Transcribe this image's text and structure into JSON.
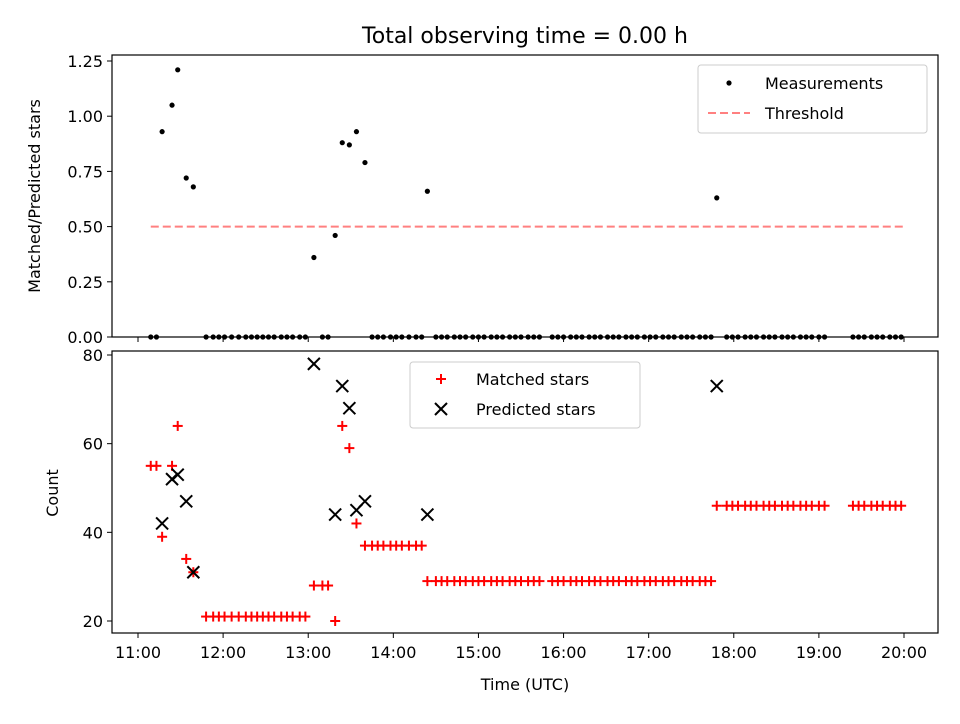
{
  "title": "Total observing time = 0.00 h",
  "colors": {
    "measurement": "#000000",
    "threshold": "#ff8080",
    "matched": "#ff0000",
    "predicted": "#000000"
  },
  "chart_data": [
    {
      "type": "scatter",
      "ylabel": "Matched/Predicted stars",
      "xlabel": "",
      "xlim": [
        "11:00",
        "20:00"
      ],
      "ylim": [
        0,
        1.25
      ],
      "yticks": [
        "0.00",
        "0.25",
        "0.50",
        "0.75",
        "1.00",
        "1.25"
      ],
      "legend_position": "top-right",
      "legend": [
        "Measurements",
        "Threshold"
      ],
      "threshold": {
        "name": "Threshold",
        "y": 0.5,
        "x_start": "11:09",
        "x_end": "20:00"
      },
      "series": [
        {
          "name": "Measurements",
          "points": [
            [
              "11:09",
              0
            ],
            [
              "11:13",
              0
            ],
            [
              "11:17",
              0.93
            ],
            [
              "11:24",
              1.05
            ],
            [
              "11:28",
              1.21
            ],
            [
              "11:34",
              0.72
            ],
            [
              "11:39",
              0.68
            ],
            [
              "11:48",
              0
            ],
            [
              "11:53",
              0
            ],
            [
              "11:57",
              0
            ],
            [
              "12:01",
              0
            ],
            [
              "12:06",
              0
            ],
            [
              "12:11",
              0
            ],
            [
              "12:16",
              0
            ],
            [
              "12:20",
              0
            ],
            [
              "12:24",
              0
            ],
            [
              "12:28",
              0
            ],
            [
              "12:32",
              0
            ],
            [
              "12:36",
              0
            ],
            [
              "12:41",
              0
            ],
            [
              "12:45",
              0
            ],
            [
              "12:49",
              0
            ],
            [
              "12:54",
              0
            ],
            [
              "12:58",
              0
            ],
            [
              "13:04",
              0.36
            ],
            [
              "13:10",
              0
            ],
            [
              "13:14",
              0
            ],
            [
              "13:19",
              0.46
            ],
            [
              "13:24",
              0.88
            ],
            [
              "13:29",
              0.87
            ],
            [
              "13:34",
              0.93
            ],
            [
              "13:40",
              0.79
            ],
            [
              "13:45",
              0
            ],
            [
              "13:49",
              0
            ],
            [
              "13:53",
              0
            ],
            [
              "13:58",
              0
            ],
            [
              "14:02",
              0
            ],
            [
              "14:06",
              0
            ],
            [
              "14:11",
              0
            ],
            [
              "14:16",
              0
            ],
            [
              "14:20",
              0
            ],
            [
              "14:24",
              0.66
            ],
            [
              "14:30",
              0
            ],
            [
              "14:34",
              0
            ],
            [
              "14:38",
              0
            ],
            [
              "14:43",
              0
            ],
            [
              "14:47",
              0
            ],
            [
              "14:51",
              0
            ],
            [
              "14:56",
              0
            ],
            [
              "15:00",
              0
            ],
            [
              "15:04",
              0
            ],
            [
              "15:09",
              0
            ],
            [
              "15:13",
              0
            ],
            [
              "15:17",
              0
            ],
            [
              "15:22",
              0
            ],
            [
              "15:26",
              0
            ],
            [
              "15:30",
              0
            ],
            [
              "15:35",
              0
            ],
            [
              "15:39",
              0
            ],
            [
              "15:43",
              0
            ],
            [
              "15:52",
              0
            ],
            [
              "15:56",
              0
            ],
            [
              "16:00",
              0
            ],
            [
              "16:05",
              0
            ],
            [
              "16:09",
              0
            ],
            [
              "16:13",
              0
            ],
            [
              "16:18",
              0
            ],
            [
              "16:22",
              0
            ],
            [
              "16:26",
              0
            ],
            [
              "16:31",
              0
            ],
            [
              "16:35",
              0
            ],
            [
              "16:39",
              0
            ],
            [
              "16:44",
              0
            ],
            [
              "16:48",
              0
            ],
            [
              "16:52",
              0
            ],
            [
              "16:57",
              0
            ],
            [
              "17:01",
              0
            ],
            [
              "17:05",
              0
            ],
            [
              "17:10",
              0
            ],
            [
              "17:14",
              0
            ],
            [
              "17:18",
              0
            ],
            [
              "17:23",
              0
            ],
            [
              "17:27",
              0
            ],
            [
              "17:31",
              0
            ],
            [
              "17:36",
              0
            ],
            [
              "17:40",
              0
            ],
            [
              "17:44",
              0
            ],
            [
              "17:48",
              0.63
            ],
            [
              "17:55",
              0
            ],
            [
              "17:59",
              0
            ],
            [
              "18:03",
              0
            ],
            [
              "18:08",
              0
            ],
            [
              "18:12",
              0
            ],
            [
              "18:16",
              0
            ],
            [
              "18:21",
              0
            ],
            [
              "18:25",
              0
            ],
            [
              "18:29",
              0
            ],
            [
              "18:34",
              0
            ],
            [
              "18:38",
              0
            ],
            [
              "18:42",
              0
            ],
            [
              "18:47",
              0
            ],
            [
              "18:51",
              0
            ],
            [
              "18:55",
              0
            ],
            [
              "19:00",
              0
            ],
            [
              "19:04",
              0
            ],
            [
              "19:24",
              0
            ],
            [
              "19:28",
              0
            ],
            [
              "19:32",
              0
            ],
            [
              "19:37",
              0
            ],
            [
              "19:41",
              0
            ],
            [
              "19:45",
              0
            ],
            [
              "19:50",
              0
            ],
            [
              "19:54",
              0
            ],
            [
              "19:58",
              0
            ]
          ]
        }
      ]
    },
    {
      "type": "scatter",
      "ylabel": "Count",
      "xlabel": "Time (UTC)",
      "xlim": [
        "11:00",
        "20:00"
      ],
      "ylim": [
        17,
        80
      ],
      "xticks": [
        "11:00",
        "12:00",
        "13:00",
        "14:00",
        "15:00",
        "16:00",
        "17:00",
        "18:00",
        "19:00",
        "20:00"
      ],
      "yticks": [
        "20",
        "40",
        "60",
        "80"
      ],
      "legend_position": "top-center",
      "legend": [
        "Matched stars",
        "Predicted stars"
      ],
      "series": [
        {
          "name": "Matched stars",
          "points": [
            [
              "11:09",
              55
            ],
            [
              "11:13",
              55
            ],
            [
              "11:17",
              39
            ],
            [
              "11:24",
              55
            ],
            [
              "11:28",
              64
            ],
            [
              "11:34",
              34
            ],
            [
              "11:39",
              31
            ],
            [
              "11:48",
              21
            ],
            [
              "11:53",
              21
            ],
            [
              "11:57",
              21
            ],
            [
              "12:01",
              21
            ],
            [
              "12:06",
              21
            ],
            [
              "12:11",
              21
            ],
            [
              "12:16",
              21
            ],
            [
              "12:20",
              21
            ],
            [
              "12:24",
              21
            ],
            [
              "12:28",
              21
            ],
            [
              "12:32",
              21
            ],
            [
              "12:36",
              21
            ],
            [
              "12:41",
              21
            ],
            [
              "12:45",
              21
            ],
            [
              "12:49",
              21
            ],
            [
              "12:54",
              21
            ],
            [
              "12:58",
              21
            ],
            [
              "13:04",
              28
            ],
            [
              "13:10",
              28
            ],
            [
              "13:14",
              28
            ],
            [
              "13:19",
              20
            ],
            [
              "13:24",
              64
            ],
            [
              "13:29",
              59
            ],
            [
              "13:34",
              42
            ],
            [
              "13:40",
              37
            ],
            [
              "13:45",
              37
            ],
            [
              "13:49",
              37
            ],
            [
              "13:53",
              37
            ],
            [
              "13:58",
              37
            ],
            [
              "14:02",
              37
            ],
            [
              "14:06",
              37
            ],
            [
              "14:11",
              37
            ],
            [
              "14:16",
              37
            ],
            [
              "14:20",
              37
            ],
            [
              "14:24",
              29
            ],
            [
              "14:30",
              29
            ],
            [
              "14:34",
              29
            ],
            [
              "14:38",
              29
            ],
            [
              "14:43",
              29
            ],
            [
              "14:47",
              29
            ],
            [
              "14:51",
              29
            ],
            [
              "14:56",
              29
            ],
            [
              "15:00",
              29
            ],
            [
              "15:04",
              29
            ],
            [
              "15:09",
              29
            ],
            [
              "15:13",
              29
            ],
            [
              "15:17",
              29
            ],
            [
              "15:22",
              29
            ],
            [
              "15:26",
              29
            ],
            [
              "15:30",
              29
            ],
            [
              "15:35",
              29
            ],
            [
              "15:39",
              29
            ],
            [
              "15:43",
              29
            ],
            [
              "15:52",
              29
            ],
            [
              "15:56",
              29
            ],
            [
              "16:00",
              29
            ],
            [
              "16:05",
              29
            ],
            [
              "16:09",
              29
            ],
            [
              "16:13",
              29
            ],
            [
              "16:18",
              29
            ],
            [
              "16:22",
              29
            ],
            [
              "16:26",
              29
            ],
            [
              "16:31",
              29
            ],
            [
              "16:35",
              29
            ],
            [
              "16:39",
              29
            ],
            [
              "16:44",
              29
            ],
            [
              "16:48",
              29
            ],
            [
              "16:52",
              29
            ],
            [
              "16:57",
              29
            ],
            [
              "17:01",
              29
            ],
            [
              "17:05",
              29
            ],
            [
              "17:10",
              29
            ],
            [
              "17:14",
              29
            ],
            [
              "17:18",
              29
            ],
            [
              "17:23",
              29
            ],
            [
              "17:27",
              29
            ],
            [
              "17:31",
              29
            ],
            [
              "17:36",
              29
            ],
            [
              "17:40",
              29
            ],
            [
              "17:44",
              29
            ],
            [
              "17:48",
              46
            ],
            [
              "17:55",
              46
            ],
            [
              "17:59",
              46
            ],
            [
              "18:03",
              46
            ],
            [
              "18:08",
              46
            ],
            [
              "18:12",
              46
            ],
            [
              "18:16",
              46
            ],
            [
              "18:21",
              46
            ],
            [
              "18:25",
              46
            ],
            [
              "18:29",
              46
            ],
            [
              "18:34",
              46
            ],
            [
              "18:38",
              46
            ],
            [
              "18:42",
              46
            ],
            [
              "18:47",
              46
            ],
            [
              "18:51",
              46
            ],
            [
              "18:55",
              46
            ],
            [
              "19:00",
              46
            ],
            [
              "19:04",
              46
            ],
            [
              "19:24",
              46
            ],
            [
              "19:28",
              46
            ],
            [
              "19:32",
              46
            ],
            [
              "19:37",
              46
            ],
            [
              "19:41",
              46
            ],
            [
              "19:45",
              46
            ],
            [
              "19:50",
              46
            ],
            [
              "19:54",
              46
            ],
            [
              "19:58",
              46
            ]
          ]
        },
        {
          "name": "Predicted stars",
          "points": [
            [
              "11:17",
              42
            ],
            [
              "11:24",
              52
            ],
            [
              "11:28",
              53
            ],
            [
              "11:34",
              47
            ],
            [
              "11:39",
              31
            ],
            [
              "13:04",
              78
            ],
            [
              "13:19",
              44
            ],
            [
              "13:24",
              73
            ],
            [
              "13:29",
              68
            ],
            [
              "13:34",
              45
            ],
            [
              "13:40",
              47
            ],
            [
              "14:24",
              44
            ],
            [
              "17:48",
              73
            ]
          ]
        }
      ]
    }
  ]
}
